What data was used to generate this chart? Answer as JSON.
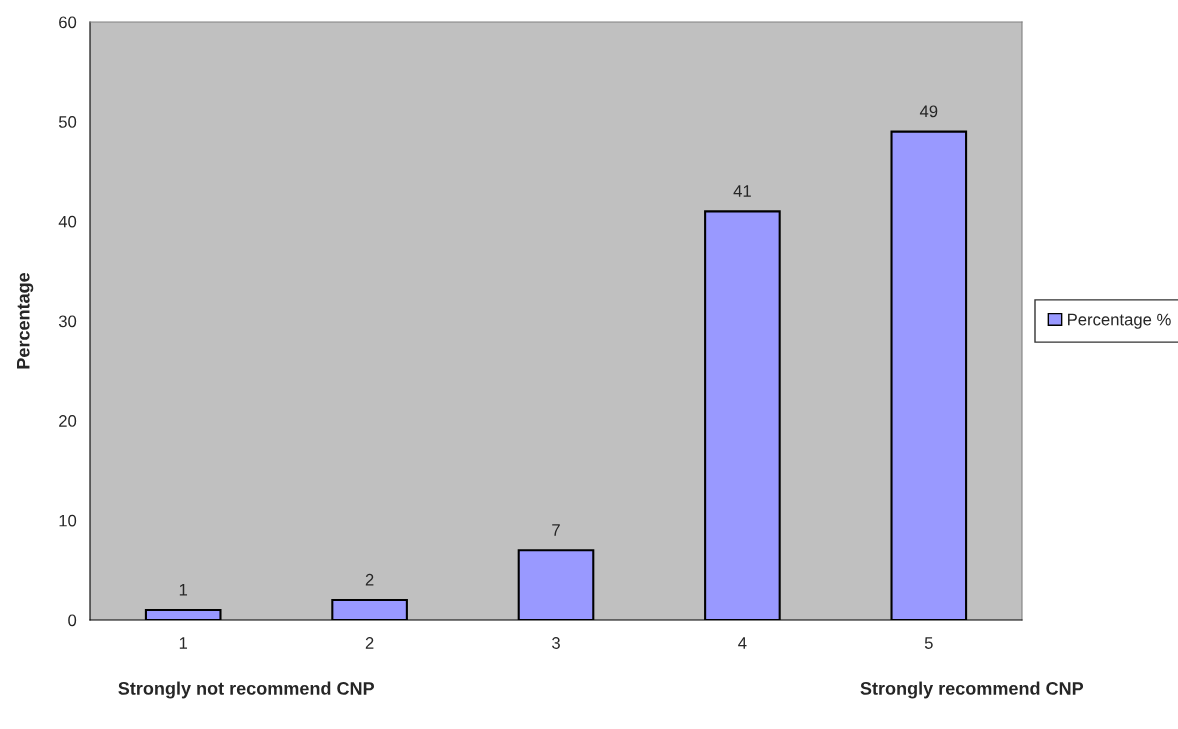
{
  "chart_data": {
    "type": "bar",
    "ylabel": "Percentage",
    "categories": [
      "1",
      "2",
      "3",
      "4",
      "5"
    ],
    "series": [
      {
        "name": "Percentage %",
        "color": "#9999ff",
        "values": [
          1,
          2,
          7,
          41,
          49
        ]
      }
    ],
    "ylim": [
      0,
      60
    ],
    "yticks": [
      0,
      10,
      20,
      30,
      40,
      50,
      60
    ],
    "data_labels": true,
    "grid": false,
    "legend": "right",
    "annotations": [
      "Strongly not recommend CNP",
      "Strongly recommend CNP"
    ]
  }
}
